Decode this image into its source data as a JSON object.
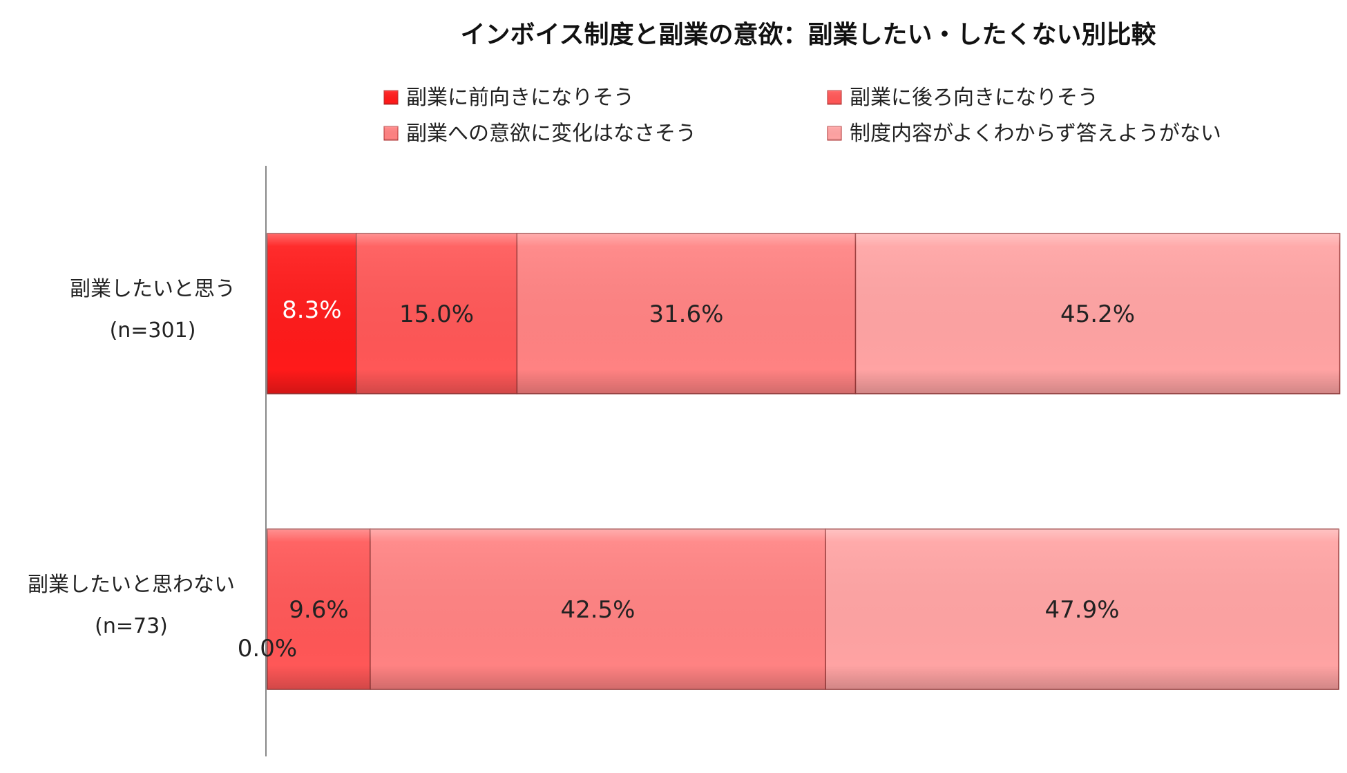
{
  "chart_data": {
    "type": "bar",
    "orientation": "horizontal",
    "stacked": true,
    "percent_stacked": true,
    "title": "インボイス制度と副業の意欲：副業したい・したくない別比較",
    "xlabel": "",
    "ylabel": "",
    "xlim": [
      0,
      100
    ],
    "grid": false,
    "legend_position": "top",
    "categories": [
      {
        "label": "副業したいと思う",
        "n": "(n=301)"
      },
      {
        "label": "副業したいと思わない",
        "n": "(n=73)"
      }
    ],
    "series": [
      {
        "name": "副業に前向きになりそう",
        "color": "#ff1a1a",
        "values": [
          8.3,
          0.0
        ],
        "labels": [
          "8.3%",
          "0.0%"
        ],
        "label_color": "#ffffff"
      },
      {
        "name": "副業に後ろ向きになりそう",
        "color": "#ff5757",
        "values": [
          15.0,
          9.6
        ],
        "labels": [
          "15.0%",
          "9.6%"
        ],
        "label_color": "#222222"
      },
      {
        "name": "副業への意欲に変化はなさそう",
        "color": "#ff8282",
        "values": [
          31.6,
          42.5
        ],
        "labels": [
          "31.6%",
          "42.5%"
        ],
        "label_color": "#222222"
      },
      {
        "name": "制度内容がよくわからず答えようがない",
        "color": "#ffa3a3",
        "values": [
          45.2,
          47.9
        ],
        "labels": [
          "45.2%",
          "47.9%"
        ],
        "label_color": "#222222"
      }
    ]
  }
}
